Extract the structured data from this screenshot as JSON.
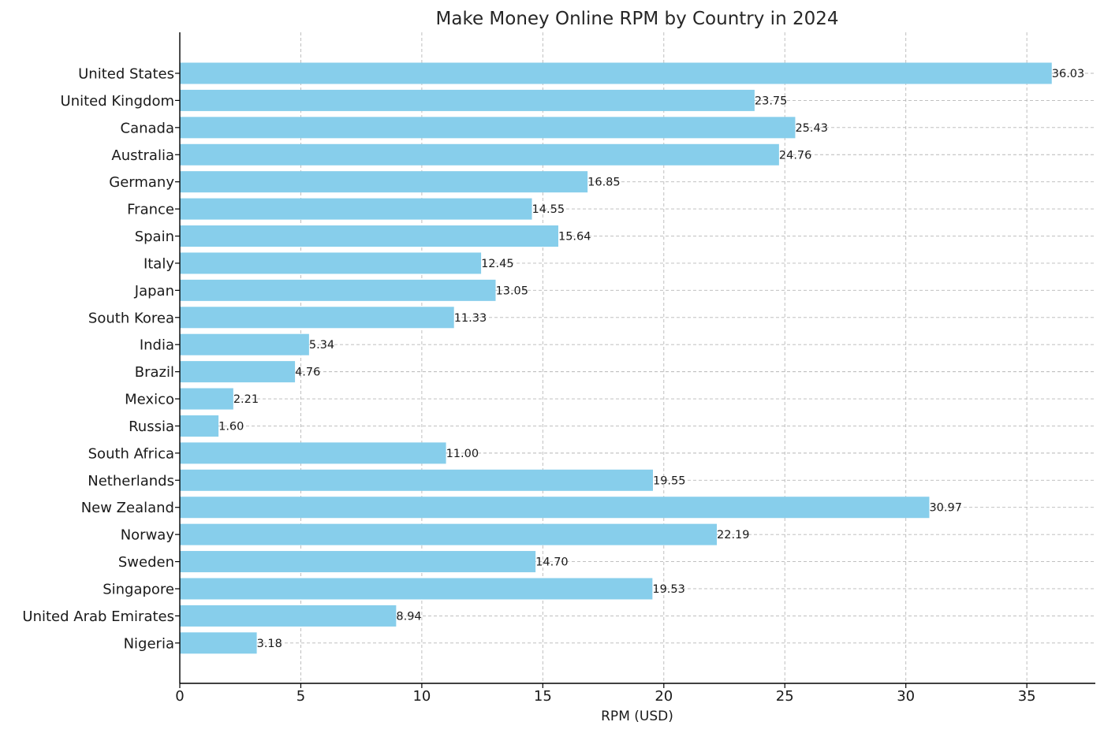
{
  "chart_data": {
    "type": "bar",
    "orientation": "horizontal",
    "title": "Make Money Online RPM by Country in 2024",
    "xlabel": "RPM (USD)",
    "ylabel": "",
    "categories": [
      "United States",
      "United Kingdom",
      "Canada",
      "Australia",
      "Germany",
      "France",
      "Spain",
      "Italy",
      "Japan",
      "South Korea",
      "India",
      "Brazil",
      "Mexico",
      "Russia",
      "South Africa",
      "Netherlands",
      "New Zealand",
      "Norway",
      "Sweden",
      "Singapore",
      "United Arab Emirates",
      "Nigeria"
    ],
    "values": [
      36.03,
      23.75,
      25.43,
      24.76,
      16.85,
      14.55,
      15.64,
      12.45,
      13.05,
      11.33,
      5.34,
      4.76,
      2.21,
      1.6,
      11.0,
      19.55,
      30.97,
      22.19,
      14.7,
      19.53,
      8.94,
      3.18
    ],
    "value_labels": [
      "36.03",
      "23.75",
      "25.43",
      "24.76",
      "16.85",
      "14.55",
      "15.64",
      "12.45",
      "13.05",
      "11.33",
      "5.34",
      "4.76",
      "2.21",
      "1.60",
      "11.00",
      "19.55",
      "30.97",
      "22.19",
      "14.70",
      "19.53",
      "8.94",
      "3.18"
    ],
    "xlim": [
      0,
      37.83
    ],
    "xticks": [
      0,
      5,
      10,
      15,
      20,
      25,
      30,
      35
    ],
    "x_tick_labels": [
      "0",
      "5",
      "10",
      "15",
      "20",
      "25",
      "30",
      "35"
    ],
    "grid": true,
    "bar_color": "#87ceeb"
  }
}
